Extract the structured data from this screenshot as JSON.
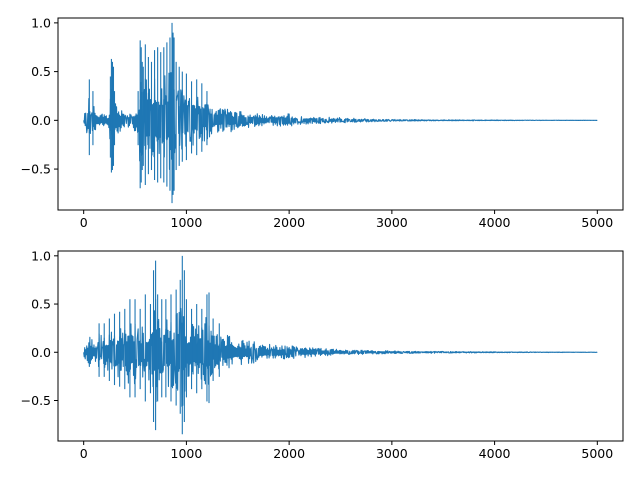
{
  "colors": {
    "line": "#1f77b4",
    "frame": "#000000",
    "background": "#ffffff"
  },
  "chart_data": [
    {
      "type": "line",
      "title": "",
      "xlabel": "",
      "ylabel": "",
      "grid": false,
      "legend": "none",
      "xlim": [
        -250,
        5250
      ],
      "ylim": [
        -0.92,
        1.05
      ],
      "xticks": [
        0,
        1000,
        2000,
        3000,
        4000,
        5000
      ],
      "xtick_labels": [
        "0",
        "1000",
        "2000",
        "3000",
        "4000",
        "5000"
      ],
      "yticks": [
        -0.5,
        0.0,
        0.5,
        1.0
      ],
      "ytick_labels": [
        "−0.5",
        "0.0",
        "0.5",
        "1.0"
      ],
      "series": [
        {
          "x": [
            0,
            20,
            40,
            55,
            70,
            90,
            110,
            130,
            150,
            180,
            210,
            240,
            260,
            270,
            280,
            290,
            300,
            320,
            340,
            380,
            420,
            460,
            500,
            530,
            550,
            560,
            570,
            580,
            600,
            630,
            660,
            690,
            720,
            750,
            780,
            810,
            840,
            860,
            870,
            880,
            900,
            930,
            960,
            1000,
            1050,
            1100,
            1150,
            1200,
            1260,
            1320,
            1400,
            1480,
            1560,
            1650,
            1750,
            1850,
            1950,
            2050,
            2200,
            2350,
            2500,
            2700,
            2900,
            3100,
            3400,
            3700,
            4000,
            4300,
            4600,
            5000
          ],
          "envelope": [
            0.05,
            0.2,
            0.25,
            0.42,
            0.28,
            0.3,
            0.18,
            0.12,
            0.1,
            0.12,
            0.1,
            0.08,
            0.45,
            0.63,
            0.6,
            0.55,
            0.3,
            0.25,
            0.2,
            0.18,
            0.15,
            0.15,
            0.18,
            0.3,
            0.82,
            0.75,
            0.6,
            0.55,
            0.78,
            0.65,
            0.6,
            0.72,
            0.75,
            0.7,
            0.75,
            0.8,
            0.85,
            1.0,
            0.9,
            0.85,
            0.6,
            0.55,
            0.5,
            0.48,
            0.4,
            0.42,
            0.38,
            0.3,
            0.25,
            0.22,
            0.2,
            0.17,
            0.14,
            0.12,
            0.1,
            0.09,
            0.13,
            0.08,
            0.06,
            0.05,
            0.05,
            0.03,
            0.02,
            0.015,
            0.01,
            0.008,
            0.006,
            0.004,
            0.003,
            0.002
          ]
        }
      ]
    },
    {
      "type": "line",
      "title": "",
      "xlabel": "",
      "ylabel": "",
      "grid": false,
      "legend": "none",
      "xlim": [
        -250,
        5250
      ],
      "ylim": [
        -0.92,
        1.05
      ],
      "xticks": [
        0,
        1000,
        2000,
        3000,
        4000,
        5000
      ],
      "xtick_labels": [
        "0",
        "1000",
        "2000",
        "3000",
        "4000",
        "5000"
      ],
      "yticks": [
        -0.5,
        0.0,
        0.5,
        1.0
      ],
      "ytick_labels": [
        "−0.5",
        "0.0",
        "0.5",
        "1.0"
      ],
      "series": [
        {
          "x": [
            0,
            30,
            60,
            100,
            150,
            200,
            250,
            300,
            350,
            400,
            450,
            500,
            550,
            600,
            650,
            680,
            700,
            720,
            760,
            800,
            850,
            900,
            940,
            960,
            980,
            1000,
            1050,
            1100,
            1150,
            1200,
            1220,
            1260,
            1320,
            1400,
            1480,
            1560,
            1650,
            1750,
            1850,
            1950,
            2050,
            2150,
            2250,
            2350,
            2450,
            2600,
            2800,
            3000,
            3200,
            3500,
            3800,
            4100,
            4400,
            4700,
            5000
          ],
          "envelope": [
            0.1,
            0.15,
            0.25,
            0.2,
            0.3,
            0.3,
            0.35,
            0.4,
            0.42,
            0.45,
            0.55,
            0.55,
            0.45,
            0.6,
            0.5,
            0.85,
            0.95,
            0.6,
            0.55,
            0.55,
            0.6,
            0.65,
            0.75,
            1.0,
            0.85,
            0.55,
            0.45,
            0.5,
            0.45,
            0.6,
            0.62,
            0.35,
            0.3,
            0.28,
            0.25,
            0.2,
            0.18,
            0.15,
            0.12,
            0.12,
            0.1,
            0.09,
            0.1,
            0.06,
            0.05,
            0.04,
            0.03,
            0.025,
            0.02,
            0.015,
            0.01,
            0.008,
            0.006,
            0.004,
            0.003
          ]
        }
      ]
    }
  ]
}
